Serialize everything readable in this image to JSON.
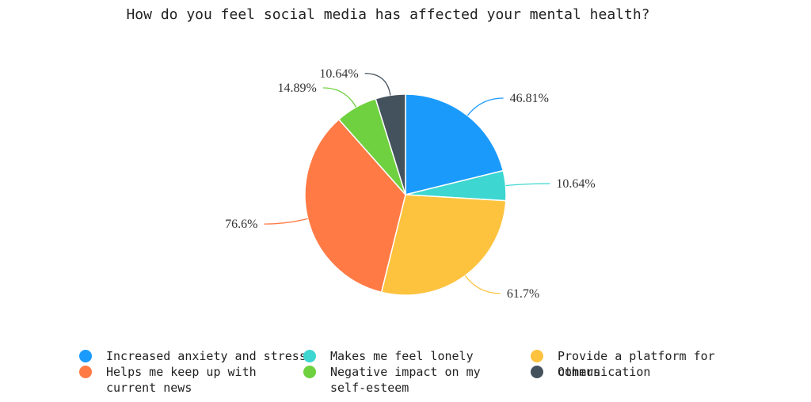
{
  "chart_data": {
    "type": "pie",
    "title": "How do you feel social media has affected your mental health?",
    "categories": [
      "Increased anxiety and stress",
      "Makes me feel lonely",
      "Provide a platform for communication",
      "Helps me keep up with current news",
      "Negative impact on my self-esteem",
      "Others"
    ],
    "values": [
      46.81,
      10.64,
      61.7,
      76.6,
      14.89,
      10.64
    ],
    "data_labels": [
      "46.81%",
      "10.64%",
      "61.7%",
      "76.6%",
      "14.89%",
      "10.64%"
    ],
    "colors": [
      "#1a9bfc",
      "#3dd6d0",
      "#fdc33f",
      "#ff7a45",
      "#6fd13f",
      "#44525e"
    ],
    "legend_position": "bottom"
  },
  "legend": {
    "items": [
      {
        "label": "Increased anxiety and stress",
        "color": "#1a9bfc"
      },
      {
        "label": "Helps me keep up with\ncurrent news",
        "color": "#ff7a45"
      },
      {
        "label": "Makes me feel lonely",
        "color": "#3dd6d0"
      },
      {
        "label": "Negative impact on my\nself-esteem",
        "color": "#6fd13f"
      },
      {
        "label": "Provide a platform for communication",
        "color": "#fdc33f"
      },
      {
        "label": "Others",
        "color": "#44525e"
      }
    ]
  }
}
